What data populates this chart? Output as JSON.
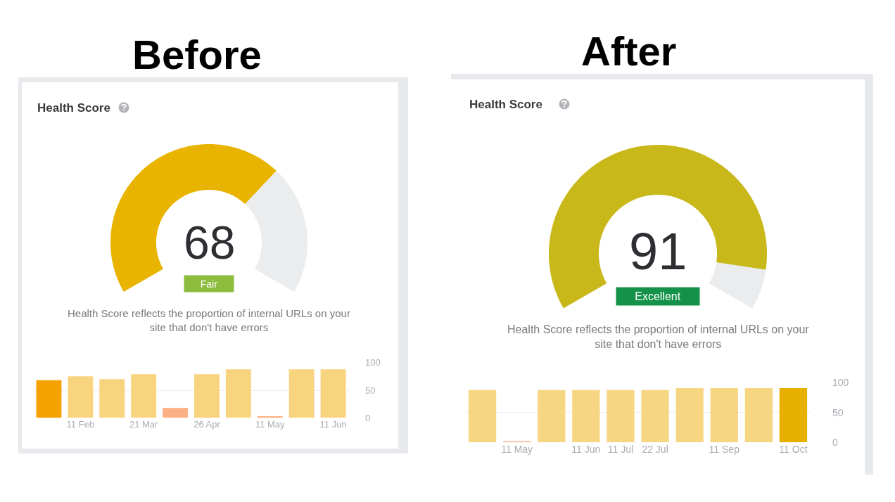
{
  "chart_data": [
    {
      "type": "donut",
      "title": "Before",
      "subtitle": "Health Score",
      "categories": [
        null,
        null
      ],
      "values": [
        68,
        32
      ],
      "colors": [
        "#e8b400",
        "#ebecee"
      ],
      "annotations": [
        "68",
        "Fair",
        "Health Score reflects the proportion of internal URLs on your site that don't have errors"
      ]
    },
    {
      "type": "bar",
      "categories": [
        null,
        "11 Feb",
        null,
        "21 Mar",
        null,
        "26 Apr",
        null,
        "11 May",
        null,
        "11 Jun"
      ],
      "values": [
        68,
        75,
        70,
        79,
        18,
        79,
        88,
        3,
        88,
        88
      ],
      "colors": [
        "#f5a200",
        "#f8d47f",
        "#f8d47f",
        "#f8d47f",
        "#fcb184",
        "#f8d47f",
        "#f8d47f",
        "#fcb184",
        "#f8d47f",
        "#f8d47f"
      ],
      "ylim": [
        0,
        100
      ],
      "yticks": [
        0,
        50,
        100
      ],
      "grid": "y"
    },
    {
      "type": "donut",
      "title": "After",
      "subtitle": "Health Score",
      "categories": [
        null,
        null
      ],
      "values": [
        91,
        9
      ],
      "colors": [
        "#c8b81a",
        "#ebecee"
      ],
      "annotations": [
        "91",
        "Excellent",
        "Health Score reflects the proportion of internal URLs on your site that don't have errors"
      ]
    },
    {
      "type": "bar",
      "categories": [
        null,
        "11 May",
        null,
        "11 Jun",
        "11 Jul",
        "22 Jul",
        null,
        "11 Sep",
        null,
        "11 Oct"
      ],
      "values": [
        88,
        1,
        88,
        88,
        88,
        88,
        91,
        91,
        91,
        91
      ],
      "colors": [
        "#f6d683",
        "#fcb184",
        "#f6d683",
        "#f6d683",
        "#f6d683",
        "#f6d683",
        "#f6d683",
        "#f6d683",
        "#f6d683",
        "#e7b000"
      ],
      "ylim": [
        0,
        100
      ],
      "yticks": [
        0,
        50,
        100
      ],
      "grid": "y"
    }
  ]
}
